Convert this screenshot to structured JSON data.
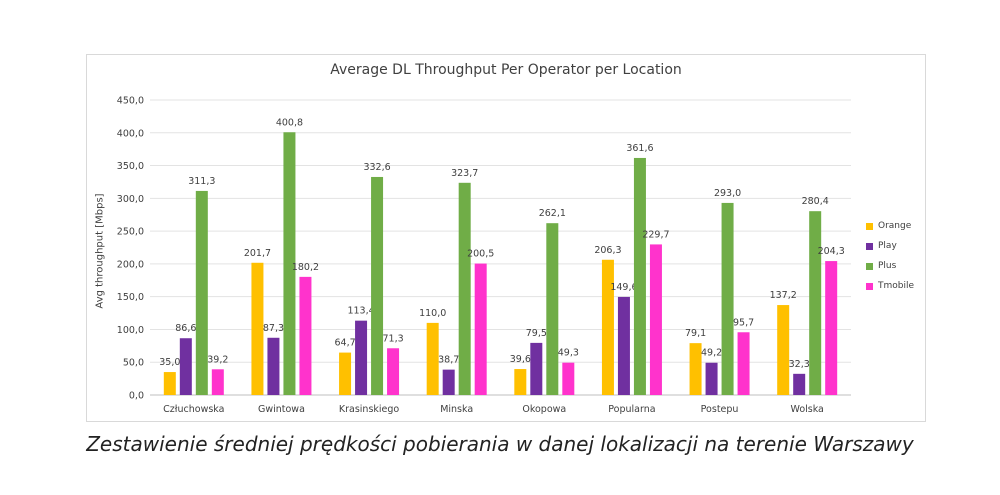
{
  "caption": "Zestawienie średniej prędkości pobierania w danej lokalizacji na terenie Warszawy",
  "chart_data": {
    "type": "bar",
    "title": "Average DL Throughput Per Operator per Location",
    "xlabel": "",
    "ylabel": "Avg throughput [Mbps]",
    "ylim": [
      0,
      450
    ],
    "ytick_step": 50,
    "ytick_labels": [
      "0,0",
      "50,0",
      "100,0",
      "150,0",
      "200,0",
      "250,0",
      "300,0",
      "350,0",
      "400,0",
      "450,0"
    ],
    "grid": true,
    "legend_position": "right",
    "categories": [
      "Człuchowska",
      "Gwintowa",
      "Krasinskiego",
      "Minska",
      "Okopowa",
      "Popularna",
      "Postepu",
      "Wolska"
    ],
    "series": [
      {
        "name": "Orange",
        "color": "#FFC000",
        "values": [
          35.0,
          201.7,
          64.7,
          110.0,
          39.6,
          206.3,
          79.1,
          137.2
        ],
        "labels": [
          "35,0",
          "201,7",
          "64,7",
          "110,0",
          "39,6",
          "206,3",
          "79,1",
          "137,2"
        ]
      },
      {
        "name": "Play",
        "color": "#7030A0",
        "values": [
          86.6,
          87.3,
          113.4,
          38.7,
          79.5,
          149.6,
          49.2,
          32.3
        ],
        "labels": [
          "86,6",
          "87,3",
          "113,4",
          "38,7",
          "79,5",
          "149,6",
          "49,2",
          "32,3"
        ]
      },
      {
        "name": "Plus",
        "color": "#70AD47",
        "values": [
          311.3,
          400.8,
          332.6,
          323.7,
          262.1,
          361.6,
          293.0,
          280.4
        ],
        "labels": [
          "311,3",
          "400,8",
          "332,6",
          "323,7",
          "262,1",
          "361,6",
          "293,0",
          "280,4"
        ]
      },
      {
        "name": "Tmobile",
        "color": "#FF33CC",
        "values": [
          39.2,
          180.2,
          71.3,
          200.5,
          49.3,
          229.7,
          95.7,
          204.3
        ],
        "labels": [
          "39,2",
          "180,2",
          "71,3",
          "200,5",
          "49,3",
          "229,7",
          "95,7",
          "204,3"
        ]
      }
    ]
  }
}
